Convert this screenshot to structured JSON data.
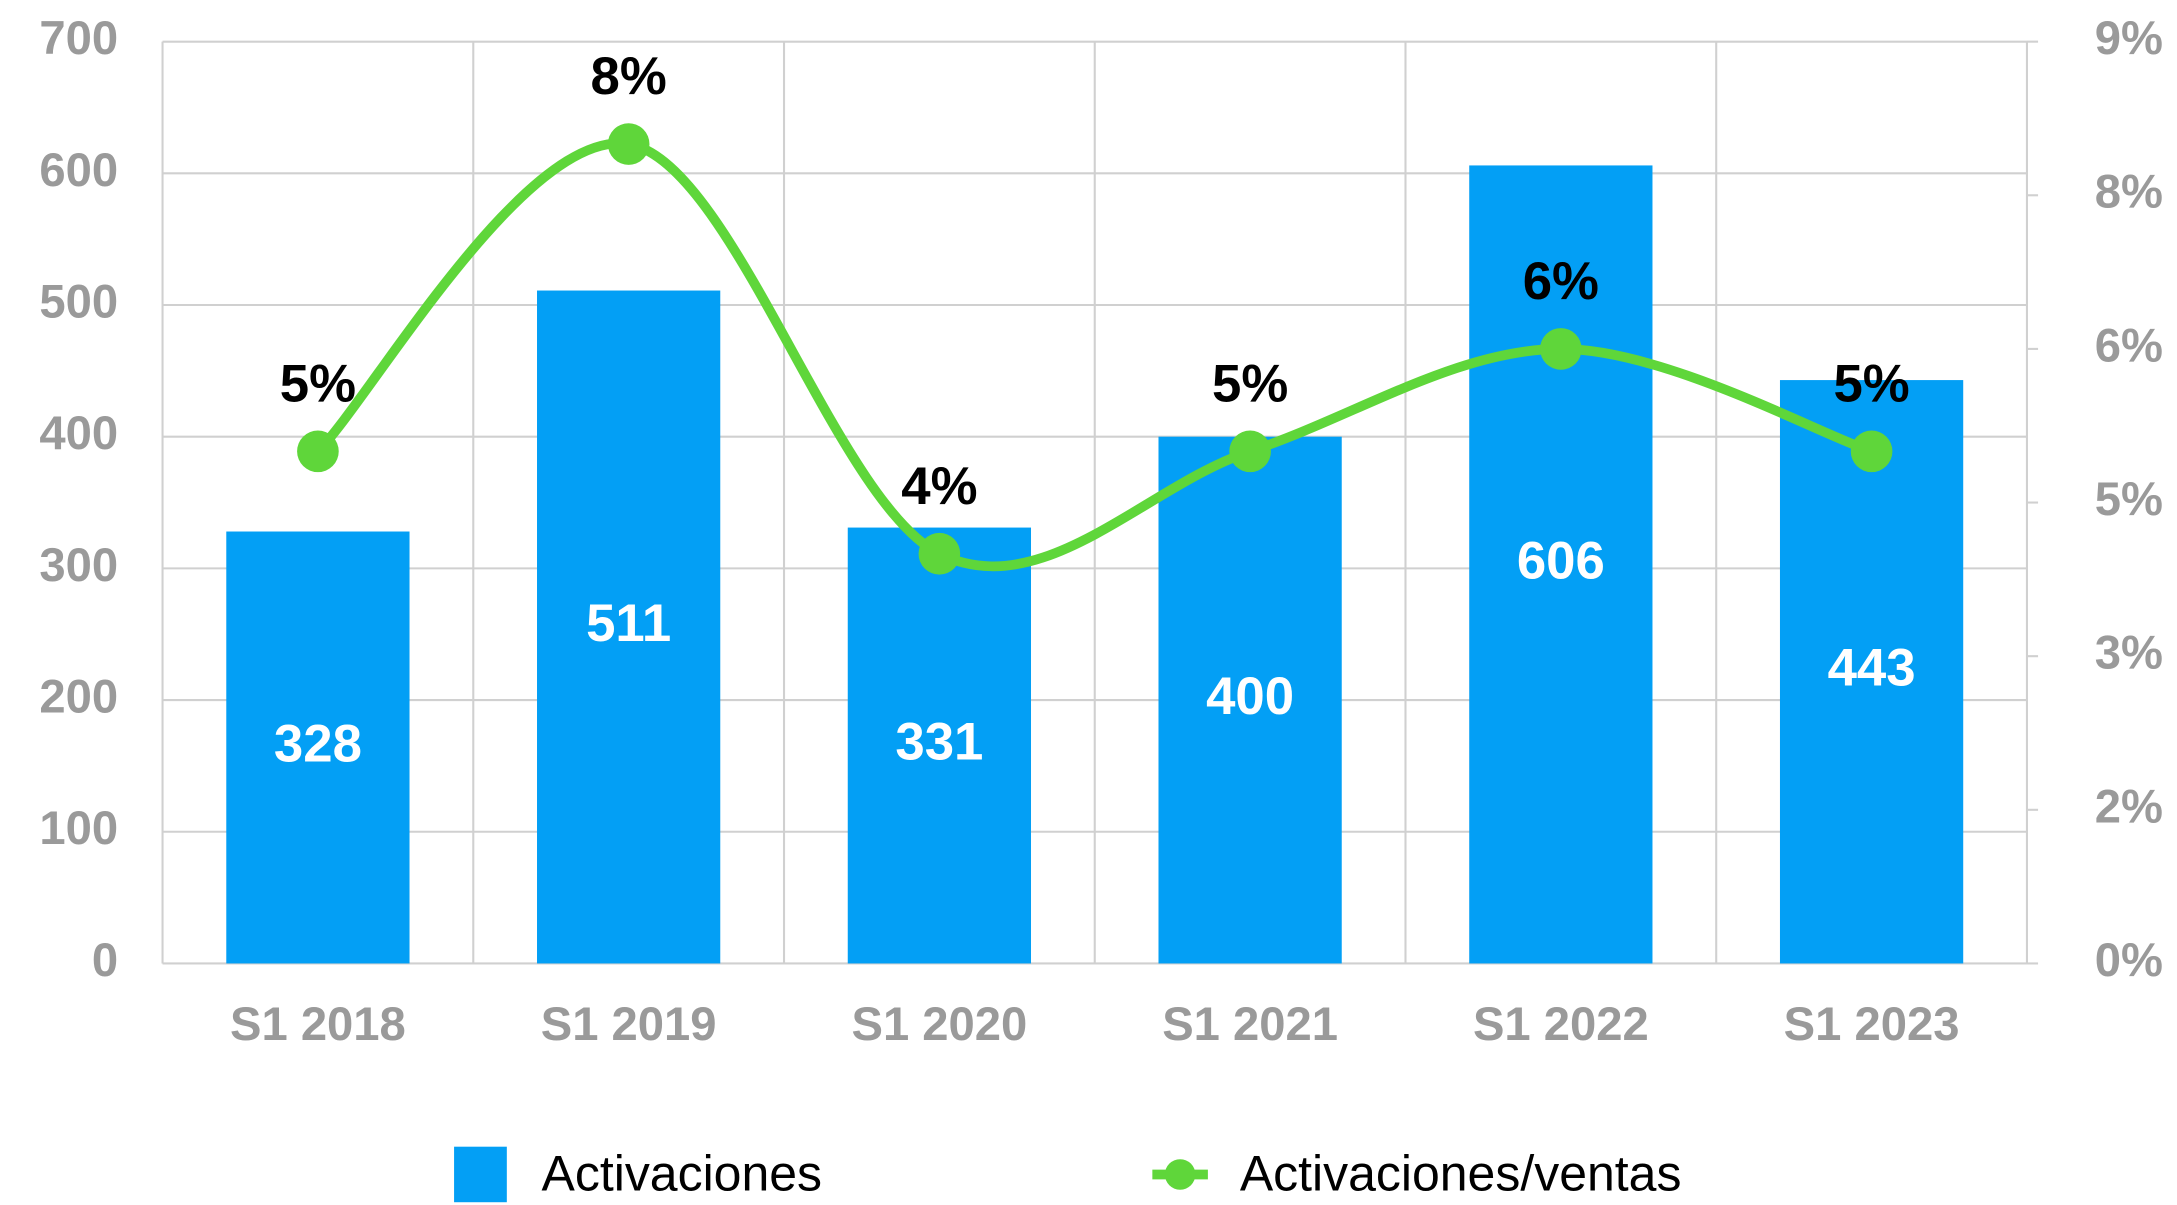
{
  "chart_data": {
    "type": "bar",
    "categories": [
      "S1 2018",
      "S1 2019",
      "S1 2020",
      "S1 2021",
      "S1 2022",
      "S1 2023"
    ],
    "series": [
      {
        "name": "Activaciones",
        "type": "bar",
        "color": "#039ff5",
        "values": [
          328,
          511,
          331,
          400,
          606,
          443
        ]
      },
      {
        "name": "Activaciones/ventas",
        "type": "line",
        "axis": "y2",
        "color": "#5fd63a",
        "values": [
          5,
          8,
          4,
          5,
          6,
          5
        ],
        "value_labels": [
          "5%",
          "8%",
          "4%",
          "5%",
          "6%",
          "5%"
        ]
      }
    ],
    "ylim": [
      0,
      700
    ],
    "yticks": [
      0,
      100,
      200,
      300,
      400,
      500,
      600,
      700
    ],
    "y2lim": [
      0,
      9
    ],
    "y2ticks": [
      {
        "value": 0,
        "label": "0%"
      },
      {
        "value": 1.5,
        "label": "2%"
      },
      {
        "value": 3,
        "label": "3%"
      },
      {
        "value": 4.5,
        "label": "5%"
      },
      {
        "value": 6,
        "label": "6%"
      },
      {
        "value": 7.5,
        "label": "8%"
      },
      {
        "value": 9,
        "label": "9%"
      }
    ],
    "grid": true,
    "legend": "bottom"
  }
}
